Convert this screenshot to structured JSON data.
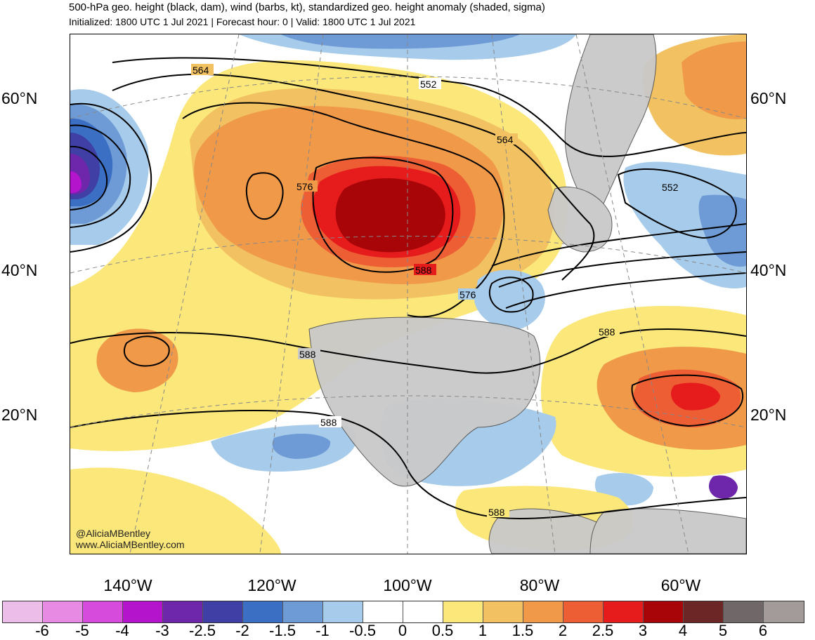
{
  "header": {
    "title": "500-hPa geo. height (black, dam), wind (barbs, kt), standardized geo. height anomaly (shaded, sigma)",
    "subtitle": "Initialized: 1800 UTC 1 Jul 2021 | Forecast hour: 0 | Valid: 1800 UTC 1 Jul 2021"
  },
  "axes": {
    "lat_labels": [
      "60°N",
      "40°N",
      "20°N"
    ],
    "lon_labels": [
      "140°W",
      "120°W",
      "100°W",
      "80°W",
      "60°W"
    ]
  },
  "contour_labels": [
    "564",
    "552",
    "564",
    "576",
    "552",
    "588",
    "576",
    "588",
    "588",
    "588",
    "588"
  ],
  "credits": {
    "handle": "@AliciaMBentley",
    "website": "www.AliciaMBentley.com"
  },
  "colorbar": {
    "colors": [
      "#ebbde8",
      "#e78ae4",
      "#d64bdc",
      "#b314cc",
      "#6e26ab",
      "#3f3fa6",
      "#3b6fc4",
      "#6e9bd6",
      "#a7cbea",
      "#ffffff",
      "#ffffff",
      "#fbe77a",
      "#f2c161",
      "#ef9949",
      "#ee5e34",
      "#e61b1c",
      "#a80509",
      "#6c2626",
      "#706868",
      "#a39a9a"
    ],
    "labels": [
      "-6",
      "-5",
      "-4",
      "-3",
      "-2.5",
      "-2",
      "-1.5",
      "-1",
      "-0.5",
      "0",
      "0.5",
      "1",
      "1.5",
      "2",
      "2.5",
      "3",
      "4",
      "5",
      "6"
    ]
  }
}
